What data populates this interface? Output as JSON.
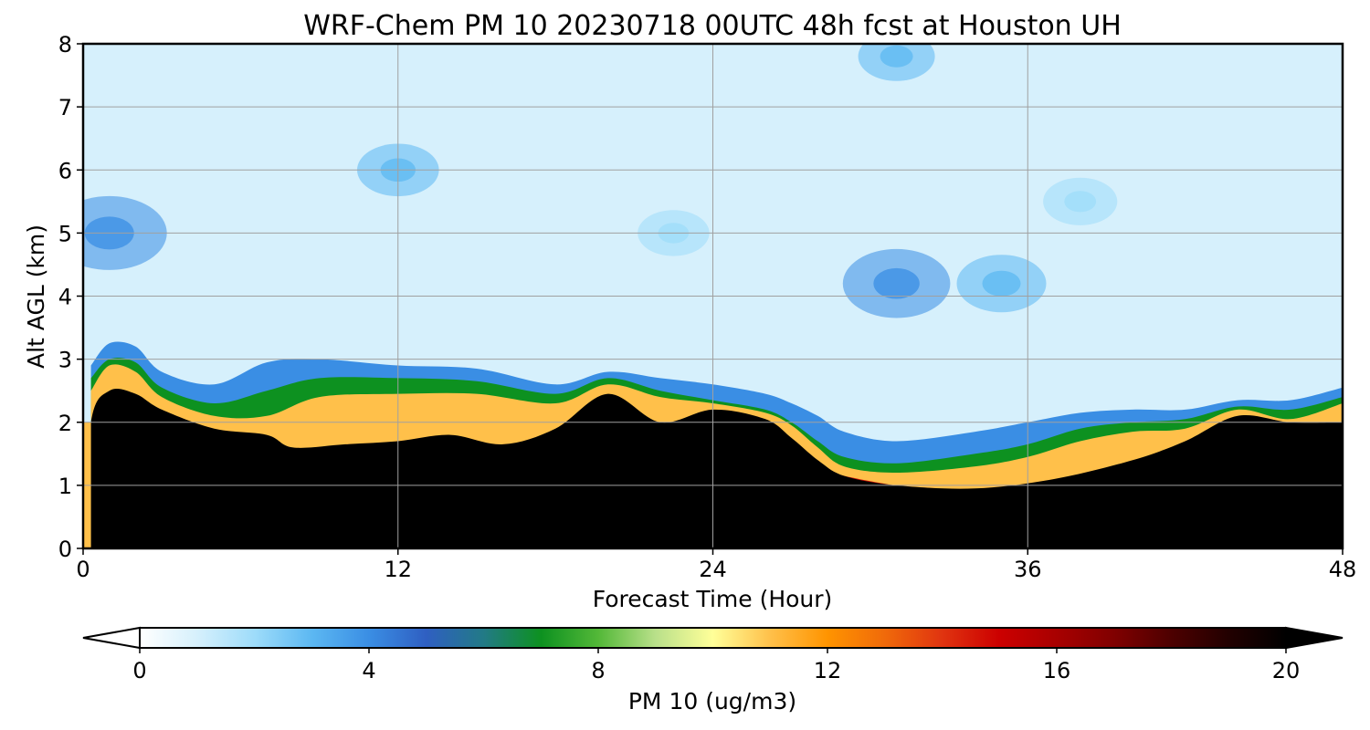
{
  "chart_data": {
    "type": "heatmap",
    "title": "WRF-Chem PM 10  20230718 00UTC 48h fcst at Houston UH",
    "xlabel": "Forecast Time (Hour)",
    "ylabel": "Alt AGL (km)",
    "xlim": [
      0,
      48
    ],
    "ylim": [
      0,
      8
    ],
    "x_ticks": [
      "0",
      "12",
      "24",
      "36",
      "48"
    ],
    "y_ticks": [
      "0",
      "1",
      "2",
      "3",
      "4",
      "5",
      "6",
      "7",
      "8"
    ],
    "grid": true,
    "colorbar": {
      "label": "PM 10  (ug/m3)",
      "range": [
        0,
        20
      ],
      "ticks": [
        "0",
        "4",
        "8",
        "12",
        "16",
        "20"
      ],
      "extend": "both",
      "stops": [
        {
          "value": 0,
          "color": "#ffffff"
        },
        {
          "value": 1,
          "color": "#d6f0fc"
        },
        {
          "value": 2,
          "color": "#9edcfa"
        },
        {
          "value": 3,
          "color": "#5cb8f2"
        },
        {
          "value": 4,
          "color": "#3a8ee4"
        },
        {
          "value": 5,
          "color": "#2f5fc2"
        },
        {
          "value": 6,
          "color": "#227a86"
        },
        {
          "value": 7,
          "color": "#0d9120"
        },
        {
          "value": 8,
          "color": "#53b838"
        },
        {
          "value": 9,
          "color": "#b9e08a"
        },
        {
          "value": 10,
          "color": "#ffff99"
        },
        {
          "value": 11,
          "color": "#ffc04a"
        },
        {
          "value": 12,
          "color": "#ff9400"
        },
        {
          "value": 13,
          "color": "#f06a0a"
        },
        {
          "value": 14,
          "color": "#e03410"
        },
        {
          "value": 15,
          "color": "#cc0000"
        },
        {
          "value": 16,
          "color": "#a80000"
        },
        {
          "value": 17,
          "color": "#800000"
        },
        {
          "value": 18,
          "color": "#4d0000"
        },
        {
          "value": 19,
          "color": "#220000"
        },
        {
          "value": 20,
          "color": "#000000"
        }
      ]
    },
    "field": {
      "mixed_layer_top_km": [
        [
          0,
          0
        ],
        [
          0.3,
          2.0
        ],
        [
          1,
          2.5
        ],
        [
          2,
          2.45
        ],
        [
          3,
          2.2
        ],
        [
          5,
          1.9
        ],
        [
          7,
          1.8
        ],
        [
          8,
          1.6
        ],
        [
          10,
          1.65
        ],
        [
          12,
          1.7
        ],
        [
          14,
          1.8
        ],
        [
          16,
          1.65
        ],
        [
          18,
          1.9
        ],
        [
          20,
          2.45
        ],
        [
          22,
          2.0
        ],
        [
          24,
          2.2
        ],
        [
          26,
          2.05
        ],
        [
          27,
          1.75
        ],
        [
          28,
          1.4
        ],
        [
          29,
          1.15
        ],
        [
          31,
          1.0
        ],
        [
          34,
          0.95
        ],
        [
          37,
          1.1
        ],
        [
          40,
          1.4
        ],
        [
          42,
          1.7
        ],
        [
          44,
          2.1
        ],
        [
          46,
          2.0
        ],
        [
          48,
          2.0
        ]
      ],
      "orange_layer_top_km": [
        [
          0.3,
          2.5
        ],
        [
          1,
          2.9
        ],
        [
          2,
          2.8
        ],
        [
          3,
          2.4
        ],
        [
          5,
          2.1
        ],
        [
          7,
          2.1
        ],
        [
          9,
          2.4
        ],
        [
          12,
          2.45
        ],
        [
          15,
          2.45
        ],
        [
          18,
          2.3
        ],
        [
          20,
          2.6
        ],
        [
          22,
          2.4
        ],
        [
          24,
          2.3
        ],
        [
          26,
          2.15
        ],
        [
          27,
          1.95
        ],
        [
          28,
          1.6
        ],
        [
          29,
          1.3
        ],
        [
          31,
          1.2
        ],
        [
          34,
          1.3
        ],
        [
          36,
          1.45
        ],
        [
          38,
          1.7
        ],
        [
          40,
          1.85
        ],
        [
          42,
          1.9
        ],
        [
          44,
          2.2
        ],
        [
          46,
          2.05
        ],
        [
          48,
          2.3
        ]
      ],
      "green_layer_top_km": [
        [
          0.3,
          2.7
        ],
        [
          1,
          3.0
        ],
        [
          2,
          2.95
        ],
        [
          3,
          2.55
        ],
        [
          5,
          2.3
        ],
        [
          7,
          2.5
        ],
        [
          9,
          2.7
        ],
        [
          12,
          2.7
        ],
        [
          15,
          2.65
        ],
        [
          18,
          2.45
        ],
        [
          20,
          2.7
        ],
        [
          22,
          2.5
        ],
        [
          24,
          2.35
        ],
        [
          26,
          2.2
        ],
        [
          27,
          2.0
        ],
        [
          28,
          1.7
        ],
        [
          29,
          1.45
        ],
        [
          31,
          1.35
        ],
        [
          34,
          1.5
        ],
        [
          36,
          1.65
        ],
        [
          38,
          1.9
        ],
        [
          40,
          2.0
        ],
        [
          42,
          2.05
        ],
        [
          44,
          2.25
        ],
        [
          46,
          2.2
        ],
        [
          48,
          2.4
        ]
      ],
      "blue_layer_top_km": [
        [
          0.3,
          2.9
        ],
        [
          1,
          3.25
        ],
        [
          2,
          3.2
        ],
        [
          3,
          2.8
        ],
        [
          5,
          2.6
        ],
        [
          7,
          2.95
        ],
        [
          9,
          3.0
        ],
        [
          12,
          2.9
        ],
        [
          15,
          2.85
        ],
        [
          18,
          2.6
        ],
        [
          20,
          2.8
        ],
        [
          22,
          2.7
        ],
        [
          24,
          2.6
        ],
        [
          26,
          2.45
        ],
        [
          27,
          2.3
        ],
        [
          28,
          2.1
        ],
        [
          29,
          1.85
        ],
        [
          31,
          1.7
        ],
        [
          34,
          1.85
        ],
        [
          36,
          2.0
        ],
        [
          38,
          2.15
        ],
        [
          40,
          2.2
        ],
        [
          42,
          2.2
        ],
        [
          44,
          2.35
        ],
        [
          46,
          2.35
        ],
        [
          48,
          2.55
        ]
      ],
      "elevated_plume_km": [
        [
          25,
          0.9
        ],
        [
          27,
          1.5
        ],
        [
          29,
          1.15
        ],
        [
          34,
          0.85
        ],
        [
          38,
          1.0
        ],
        [
          42,
          1.5
        ],
        [
          44,
          2.05
        ]
      ],
      "upper_maxima": [
        {
          "x": 1,
          "y": 5.0,
          "value": 4.5
        },
        {
          "x": 12,
          "y": 6.0,
          "value": 3.2
        },
        {
          "x": 31,
          "y": 4.2,
          "value": 4.2
        },
        {
          "x": 22.5,
          "y": 5.0,
          "value": 2.8
        },
        {
          "x": 35,
          "y": 4.2,
          "value": 3.5
        },
        {
          "x": 31,
          "y": 7.8,
          "value": 3.0
        },
        {
          "x": 38,
          "y": 5.5,
          "value": 2.9
        }
      ],
      "background_upper_value": 1.3
    }
  }
}
